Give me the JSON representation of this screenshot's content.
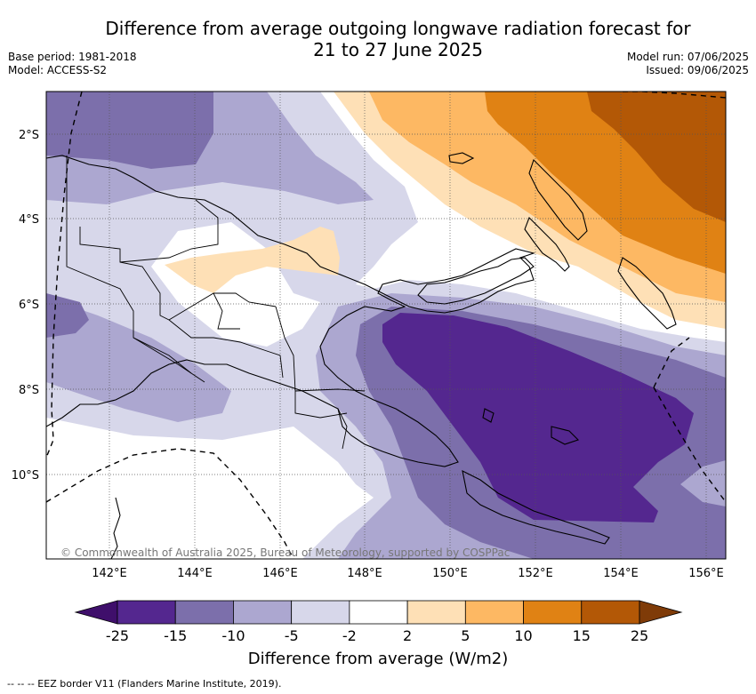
{
  "title_line1": "Difference from average outgoing longwave radiation forecast for",
  "title_line2": "21 to 27 June 2025",
  "base_period": "Base period: 1981-2018",
  "model": "Model: ACCESS-S2",
  "model_run": "Model run: 07/06/2025",
  "issued": "Issued: 09/06/2025",
  "credit": "© Commonwealth of Australia 2025, Bureau of Meteorology, supported by COSPPac",
  "lat_labels": [
    "2°S",
    "4°S",
    "6°S",
    "8°S",
    "10°S"
  ],
  "lon_labels": [
    "142°E",
    "144°E",
    "146°E",
    "148°E",
    "150°E",
    "152°E",
    "154°E",
    "156°E"
  ],
  "colorbar": {
    "title": "Difference from average (W/m2)",
    "ticks": [
      "-25",
      "-15",
      "-10",
      "-5",
      "-2",
      "2",
      "5",
      "10",
      "15",
      "25"
    ],
    "colors": [
      "#3f0f6b",
      "#54278f",
      "#7c6fab",
      "#aca7d0",
      "#d7d7ea",
      "#ffffff",
      "#fee0b6",
      "#fdb863",
      "#e08214",
      "#b35806",
      "#7f3b08"
    ]
  },
  "legend_note": "-- -- -- EEZ border V11 (Flanders Marine Institute, 2019)."
}
